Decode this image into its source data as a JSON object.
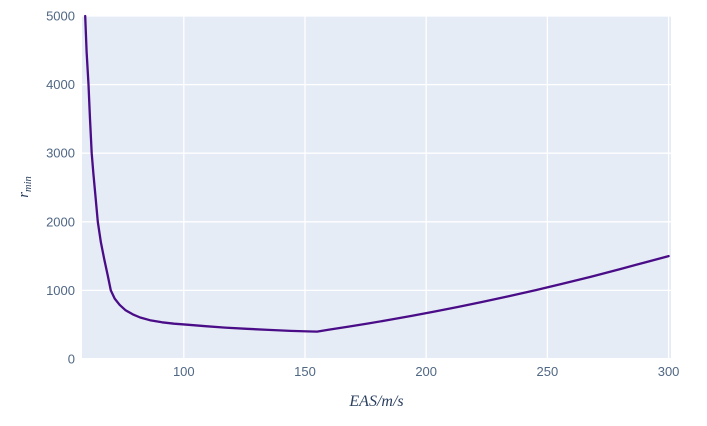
{
  "chart_data": {
    "type": "line",
    "title": "",
    "xlabel": "EAS/m/s",
    "ylabel": {
      "base": "r",
      "sub": "min"
    },
    "xlim": [
      58,
      301
    ],
    "ylim": [
      0,
      5000
    ],
    "xticks": [
      100,
      150,
      200,
      250,
      300
    ],
    "yticks": [
      0,
      1000,
      2000,
      3000,
      4000,
      5000
    ],
    "grid": true,
    "legend": false,
    "colors": {
      "line": "#4a0d87",
      "plot_background": "#e5ecf6",
      "gridline": "#ffffff",
      "tick_label": "#506784",
      "axis_title": "#2a3f5f"
    },
    "series": [
      {
        "name": "r_min",
        "x": [
          59.3,
          59.9,
          60.7,
          61.3,
          62,
          62.7,
          63.5,
          64.5,
          65.8,
          67.2,
          68.6,
          69.9,
          71.5,
          73.5,
          76,
          79,
          82,
          86,
          91,
          96,
          102,
          109,
          117,
          126,
          135,
          144,
          151,
          155,
          160,
          168,
          176,
          185,
          194,
          203,
          213,
          223,
          234,
          245,
          256,
          268,
          280,
          290,
          300
        ],
        "y": [
          5000,
          4480,
          4000,
          3500,
          3000,
          2700,
          2400,
          2000,
          1700,
          1450,
          1220,
          1000,
          880,
          790,
          710,
          650,
          605,
          565,
          535,
          515,
          498,
          478,
          458,
          440,
          424,
          410,
          402,
          399,
          428,
          472,
          518,
          572,
          629,
          689,
          758,
          831,
          915,
          1003,
          1095,
          1200,
          1310,
          1405,
          1500
        ]
      }
    ]
  }
}
